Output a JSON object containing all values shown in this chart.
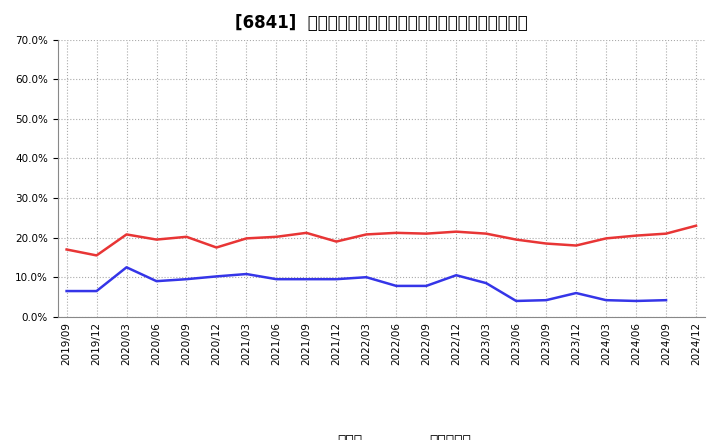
{
  "title": "[6841]  現預金、有利子負債の総資産に対する比率の推移",
  "x_labels": [
    "2019/09",
    "2019/12",
    "2020/03",
    "2020/06",
    "2020/09",
    "2020/12",
    "2021/03",
    "2021/06",
    "2021/09",
    "2021/12",
    "2022/03",
    "2022/06",
    "2022/09",
    "2022/12",
    "2023/03",
    "2023/06",
    "2023/09",
    "2023/12",
    "2024/03",
    "2024/06",
    "2024/09",
    "2024/12"
  ],
  "cash": [
    17.0,
    15.5,
    20.8,
    19.5,
    20.2,
    17.5,
    19.8,
    20.2,
    21.2,
    19.0,
    20.8,
    21.2,
    21.0,
    21.5,
    21.0,
    19.5,
    18.5,
    18.0,
    19.8,
    20.5,
    21.0,
    23.0
  ],
  "debt": [
    6.5,
    6.5,
    12.5,
    9.0,
    9.5,
    10.2,
    10.8,
    9.5,
    9.5,
    9.5,
    10.0,
    7.8,
    7.8,
    10.5,
    8.5,
    4.0,
    4.2,
    6.0,
    4.2,
    4.0,
    4.2,
    null
  ],
  "cash_color": "#e83535",
  "debt_color": "#3535e8",
  "ylim": [
    0.0,
    70.0
  ],
  "yticks": [
    0.0,
    10.0,
    20.0,
    30.0,
    40.0,
    50.0,
    60.0,
    70.0
  ],
  "legend_cash": "現預金",
  "legend_debt": "有利子負債",
  "background_color": "#ffffff",
  "plot_bg_color": "#ffffff",
  "grid_color": "#aaaaaa",
  "title_fontsize": 12,
  "tick_fontsize": 7.5,
  "legend_fontsize": 10
}
